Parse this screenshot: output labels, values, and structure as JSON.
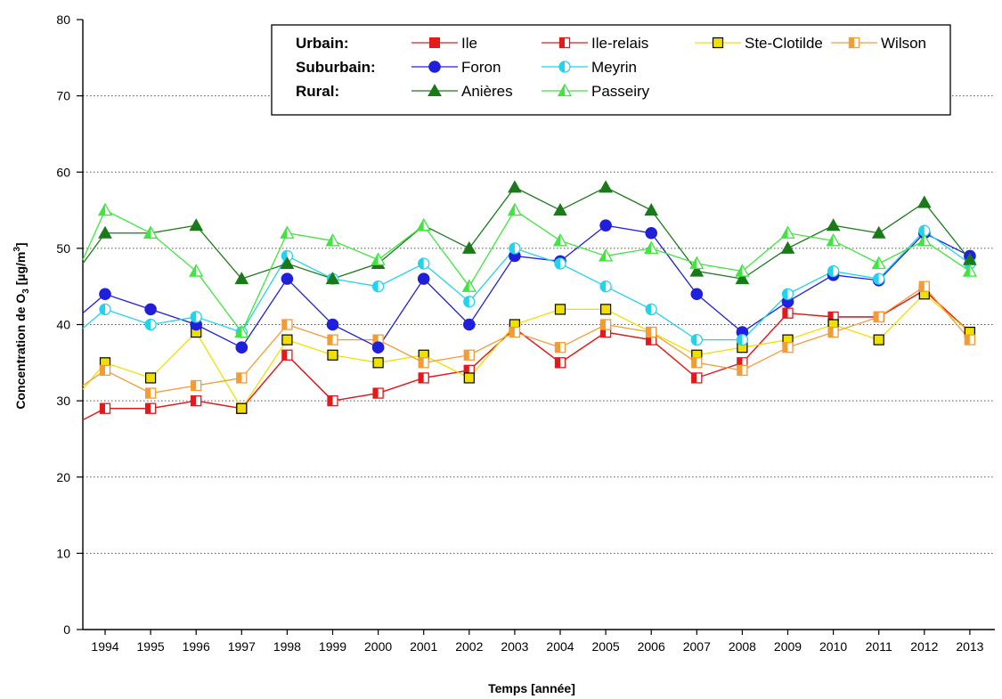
{
  "chart_data": {
    "type": "line",
    "xlabel": "Temps [année]",
    "ylabel": {
      "main": "Concentration de O",
      "sub": "3",
      "unit_prefix": "  [µg/m",
      "sup": "3",
      "unit_suffix": "]"
    },
    "ylim": [
      0,
      80
    ],
    "yticks": [
      0,
      10,
      20,
      30,
      40,
      50,
      60,
      70,
      80
    ],
    "categories": [
      "1994",
      "1995",
      "1996",
      "1997",
      "1998",
      "1999",
      "2000",
      "2001",
      "2002",
      "2003",
      "2004",
      "2005",
      "2006",
      "2007",
      "2008",
      "2009",
      "2010",
      "2011",
      "2012",
      "2013"
    ],
    "grid": "horizontal dotted",
    "legend_position": "top-right",
    "legend_groups": [
      "Urbain:",
      "Suburbain:",
      "Rural:"
    ],
    "series": [
      {
        "name": "Ile",
        "group": "Urbain:",
        "color": "#e31a1c",
        "marker": "square-filled",
        "values": [
          29,
          29,
          30,
          29,
          36,
          30,
          31,
          33,
          34,
          39.5,
          35,
          39,
          38,
          33,
          35,
          41.5,
          41,
          41,
          44.5,
          39
        ]
      },
      {
        "name": "Ile-relais",
        "group": "Urbain:",
        "color": "#e31a1c",
        "marker": "square-half",
        "values": [
          29,
          29,
          30,
          29,
          36,
          30,
          31,
          33,
          34,
          39.5,
          35,
          39,
          38,
          33,
          35,
          41.5,
          41,
          41,
          44.5,
          39
        ]
      },
      {
        "name": "Ste-Clotilde",
        "group": "Urbain:",
        "color": "#f0e000",
        "marker": "square-yellow",
        "values": [
          35,
          33,
          39,
          29,
          38,
          36,
          35,
          36,
          33,
          40,
          42,
          42,
          39,
          36,
          37,
          38,
          40,
          38,
          44,
          39
        ]
      },
      {
        "name": "Wilson",
        "group": "Urbain:",
        "color": "#f39c36",
        "marker": "square-half",
        "values": [
          34,
          31,
          32,
          33,
          40,
          38,
          38,
          35,
          36,
          39,
          37,
          40,
          39,
          35,
          34,
          37,
          39,
          41,
          45,
          38
        ]
      },
      {
        "name": "Foron",
        "group": "Suburbain:",
        "color": "#1f1fdc",
        "marker": "circle-filled",
        "values": [
          44,
          42,
          40,
          37,
          46,
          40,
          37,
          46,
          40,
          49,
          48.3,
          53,
          52,
          44,
          39,
          43,
          46.5,
          45.8,
          52,
          49
        ]
      },
      {
        "name": "Meyrin",
        "group": "Suburbain:",
        "color": "#22d3ee",
        "marker": "circle-half",
        "values": [
          42,
          40,
          41,
          39,
          49,
          46,
          45,
          48,
          43,
          50,
          48,
          45,
          42,
          38,
          38,
          44,
          47,
          46,
          52.3,
          48
        ]
      },
      {
        "name": "Anières",
        "group": "Rural:",
        "color": "#1a7a1a",
        "marker": "triangle-filled",
        "values": [
          52,
          52,
          53,
          46,
          48,
          46,
          48,
          53,
          50,
          58,
          55,
          58,
          55,
          47,
          46,
          50,
          53,
          52,
          56,
          48.5
        ]
      },
      {
        "name": "Passeiry",
        "group": "Rural:",
        "color": "#3ee63e",
        "marker": "triangle-half",
        "values": [
          55,
          52,
          47,
          39,
          52,
          51,
          48.5,
          53,
          45,
          55,
          51,
          49,
          50,
          48,
          47,
          52,
          51,
          48,
          51,
          47
        ]
      }
    ],
    "entry": {
      "Ile": 27.5,
      "Ile-relais": 27.5,
      "Ste-Clotilde": 31.5,
      "Wilson": 32,
      "Foron": 41.5,
      "Meyrin": 39.5,
      "Anières": 48,
      "Passeiry": 48.5
    }
  }
}
